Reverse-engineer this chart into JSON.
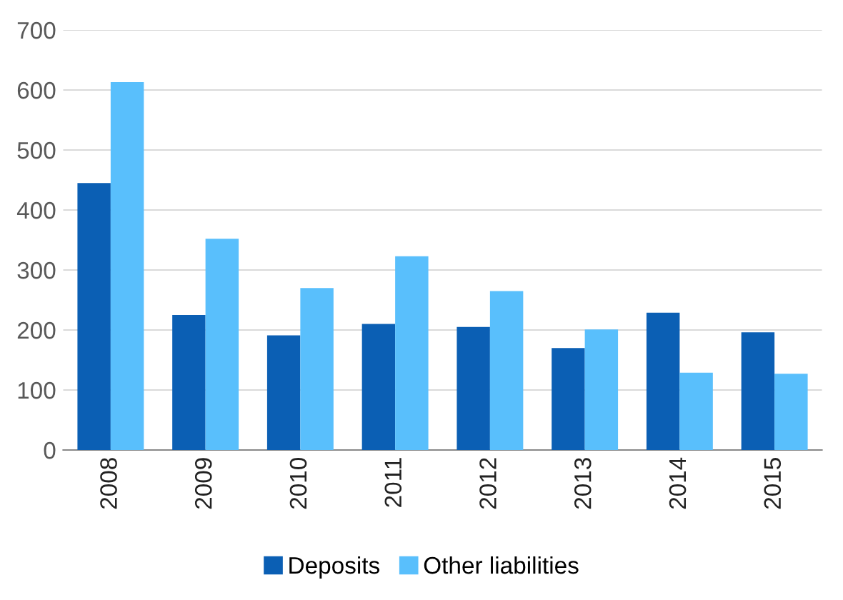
{
  "chart_data": {
    "type": "bar",
    "categories": [
      "2008",
      "2009",
      "2010",
      "2011",
      "2012",
      "2013",
      "2014",
      "2015"
    ],
    "series": [
      {
        "name": "Deposits",
        "color": "#0b5fb4",
        "values": [
          445,
          225,
          191,
          210,
          205,
          170,
          229,
          196
        ]
      },
      {
        "name": "Other liabilities",
        "color": "#59bffc",
        "values": [
          613,
          352,
          270,
          323,
          265,
          201,
          129,
          127
        ]
      }
    ],
    "ylim": [
      0,
      700
    ],
    "yticks": [
      0,
      100,
      200,
      300,
      400,
      500,
      600,
      700
    ],
    "grid": "y",
    "legend": "bottom"
  }
}
